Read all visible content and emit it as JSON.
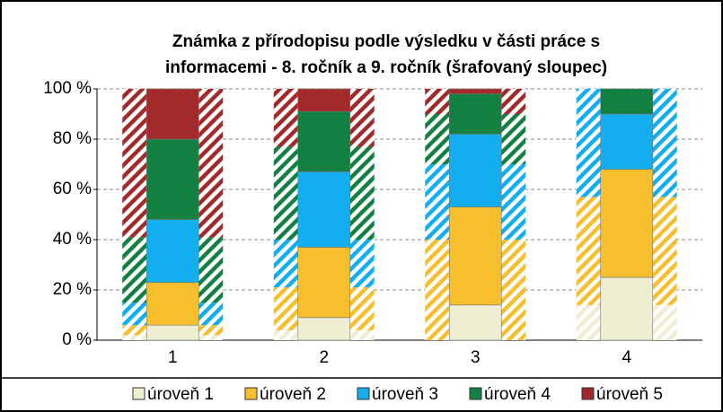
{
  "chart_data": {
    "type": "stacked_bar",
    "title": [
      "Známka z přírodopisu podle výsledku v části práce s",
      "informacemi - 8. ročník a 9. ročník (šrafovaný sloupec)"
    ],
    "categories": [
      "1",
      "2",
      "3",
      "4"
    ],
    "series": [
      {
        "name": "úroveň 1",
        "color": "#efedd2",
        "values": [
          6,
          9,
          14,
          25
        ],
        "hatched_values": [
          2,
          4,
          0,
          14
        ]
      },
      {
        "name": "úroveň 2",
        "color": "#f7bf2e",
        "values": [
          17,
          28,
          39,
          43
        ],
        "hatched_values": [
          4,
          17,
          40,
          43
        ]
      },
      {
        "name": "úroveň 3",
        "color": "#12aef0",
        "values": [
          25,
          30,
          29,
          22
        ],
        "hatched_values": [
          9,
          19,
          30,
          43
        ]
      },
      {
        "name": "úroveň 4",
        "color": "#128040",
        "values": [
          32,
          24,
          16,
          10
        ],
        "hatched_values": [
          26,
          37,
          20,
          0
        ]
      },
      {
        "name": "úroveň 5",
        "color": "#a32a2a",
        "values": [
          20,
          9,
          2,
          0
        ],
        "hatched_values": [
          59,
          23,
          10,
          0
        ]
      }
    ],
    "ylim": [
      0,
      100
    ],
    "yticks": [
      {
        "value": 0,
        "label": "0 %"
      },
      {
        "value": 20,
        "label": "20 %"
      },
      {
        "value": 40,
        "label": "40 %"
      },
      {
        "value": 60,
        "label": "60 %"
      },
      {
        "value": 80,
        "label": "80 %"
      },
      {
        "value": 100,
        "label": "100 %"
      }
    ],
    "grid": true
  }
}
